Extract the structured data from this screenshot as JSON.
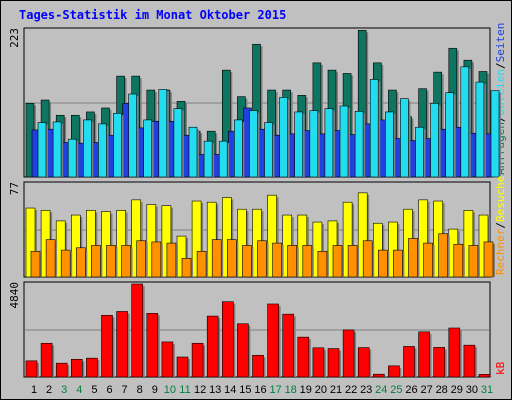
{
  "chart_data": [
    {
      "type": "bar",
      "title": "Tages-Statistik im Monat Oktober 2015",
      "categories": [
        "1",
        "2",
        "3",
        "4",
        "5",
        "6",
        "7",
        "8",
        "9",
        "10",
        "11",
        "12",
        "13",
        "14",
        "15",
        "16",
        "17",
        "18",
        "19",
        "20",
        "21",
        "22",
        "23",
        "24",
        "25",
        "26",
        "27",
        "28",
        "29",
        "30",
        "31"
      ],
      "weekend_days": [
        "3",
        "4",
        "10",
        "11",
        "17",
        "18",
        "24",
        "25",
        "31"
      ],
      "ymax": 223,
      "ymax_label": "223",
      "series": [
        {
          "name": "Anfragen",
          "color": "#0d7560",
          "values": [
            111,
            116,
            93,
            93,
            98,
            104,
            152,
            152,
            131,
            131,
            114,
            69,
            69,
            161,
            121,
            200,
            131,
            131,
            123,
            172,
            161,
            156,
            221,
            172,
            131,
            91,
            133,
            158,
            194,
            176,
            159
          ]
        },
        {
          "name": "Seiten",
          "color": "#2040e0",
          "values": [
            71,
            72,
            52,
            51,
            52,
            63,
            111,
            74,
            84,
            84,
            63,
            34,
            34,
            69,
            104,
            72,
            63,
            65,
            70,
            65,
            70,
            64,
            80,
            86,
            58,
            55,
            58,
            72,
            75,
            66,
            65
          ]
        },
        {
          "name": "Dateien",
          "color": "#22ddf0",
          "values": [
            82,
            83,
            57,
            86,
            80,
            96,
            125,
            86,
            132,
            103,
            75,
            54,
            54,
            86,
            100,
            82,
            120,
            98,
            100,
            103,
            107,
            99,
            147,
            98,
            118,
            75,
            111,
            127,
            166,
            143,
            130
          ]
        }
      ],
      "y_axis_titles": [
        "Anfragen",
        "Dateien",
        "Seiten"
      ]
    },
    {
      "type": "bar",
      "ymax": 77,
      "ymax_label": "77",
      "series": [
        {
          "name": "Besuche",
          "color": "#ffff00",
          "values": [
            59,
            57,
            48,
            53,
            57,
            56,
            57,
            66,
            62,
            61,
            35,
            65,
            64,
            68,
            58,
            58,
            70,
            53,
            53,
            47,
            48,
            64,
            72,
            46,
            47,
            58,
            66,
            65,
            41,
            57,
            53
          ]
        },
        {
          "name": "Rechner",
          "color": "#ff9000",
          "values": [
            22,
            32,
            23,
            25,
            27,
            27,
            27,
            31,
            30,
            29,
            16,
            22,
            32,
            32,
            27,
            31,
            29,
            27,
            27,
            22,
            27,
            27,
            31,
            23,
            23,
            33,
            29,
            37,
            28,
            27,
            30
          ]
        }
      ],
      "y_axis_titles": [
        "Rechner",
        "Besuche"
      ]
    },
    {
      "type": "bar",
      "ymax": 4840,
      "ymax_label": "4840",
      "series": [
        {
          "name": "kB",
          "color": "#ff0000",
          "values": [
            840,
            1756,
            720,
            920,
            980,
            3210,
            3410,
            4840,
            3310,
            1825,
            1040,
            1756,
            3170,
            3920,
            2770,
            1130,
            3800,
            3270,
            2075,
            1520,
            1480,
            2450,
            1530,
            145,
            580,
            1590,
            2350,
            1540,
            2550,
            1656,
            136
          ]
        }
      ],
      "y_axis_titles": [
        "kB"
      ]
    }
  ],
  "colors": {
    "background": "#c0c0c0",
    "title": "#0000ff",
    "weekday": "#000000",
    "weekend": "#008040"
  }
}
